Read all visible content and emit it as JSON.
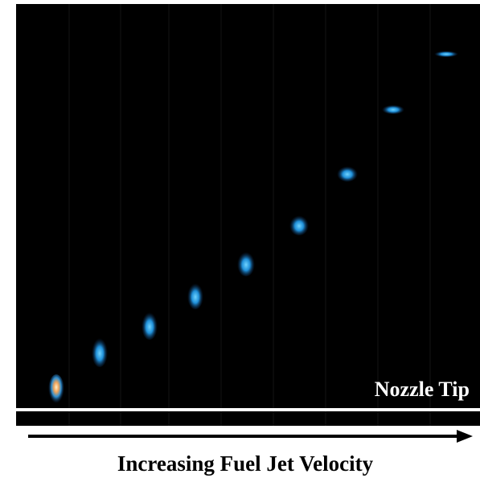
{
  "image": {
    "nozzle_label": "Nozzle Tip",
    "axis_label": "Increasing Fuel Jet Velocity"
  }
}
